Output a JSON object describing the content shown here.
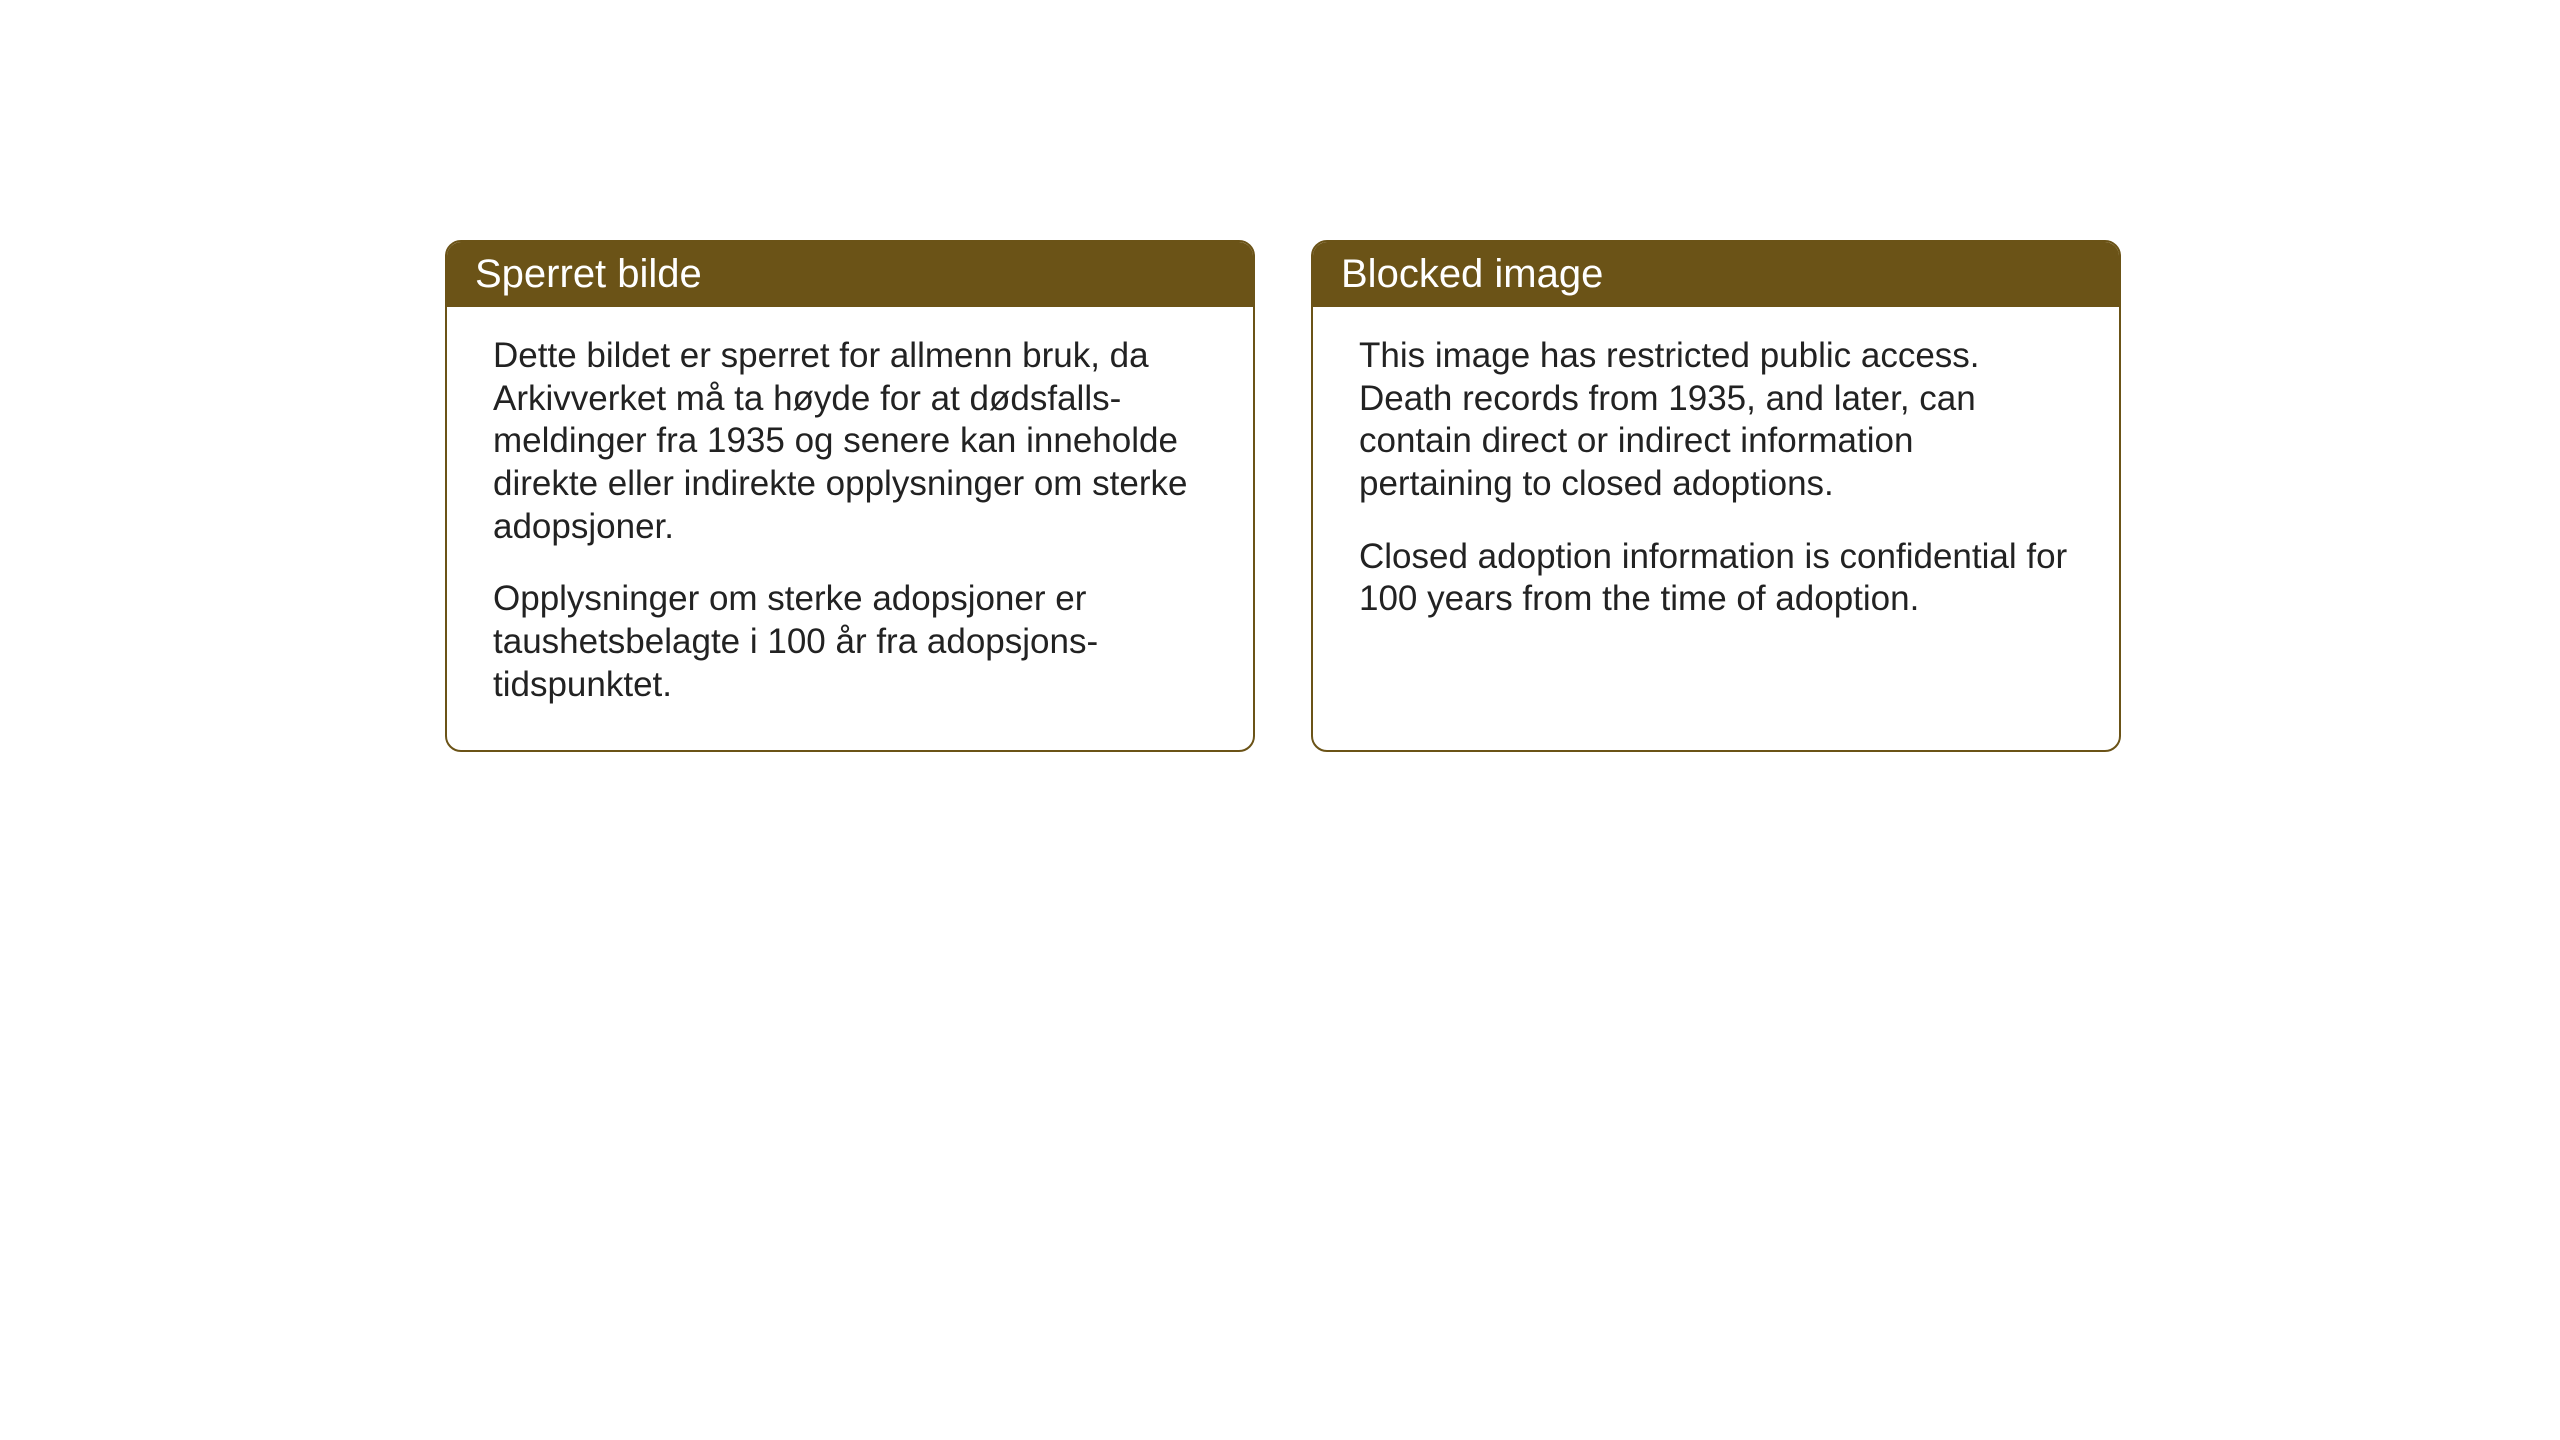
{
  "cards": {
    "norwegian": {
      "title": "Sperret bilde",
      "paragraph1": "Dette bildet er sperret for allmenn bruk, da Arkivverket må ta høyde for at dødsfalls-meldinger fra 1935 og senere kan inneholde direkte eller indirekte opplysninger om sterke adopsjoner.",
      "paragraph2": "Opplysninger om sterke adopsjoner er taushetsbelagte i 100 år fra adopsjons-tidspunktet."
    },
    "english": {
      "title": "Blocked image",
      "paragraph1": "This image has restricted public access. Death records from 1935, and later, can contain direct or indirect information pertaining to closed adoptions.",
      "paragraph2": "Closed adoption information is confidential for 100 years from the time of adoption."
    }
  },
  "styling": {
    "header_bg_color": "#6b5317",
    "header_text_color": "#ffffff",
    "border_color": "#6b5317",
    "body_text_color": "#222222",
    "background_color": "#ffffff",
    "title_fontsize": 40,
    "body_fontsize": 35,
    "border_radius": 16,
    "border_width": 2
  }
}
